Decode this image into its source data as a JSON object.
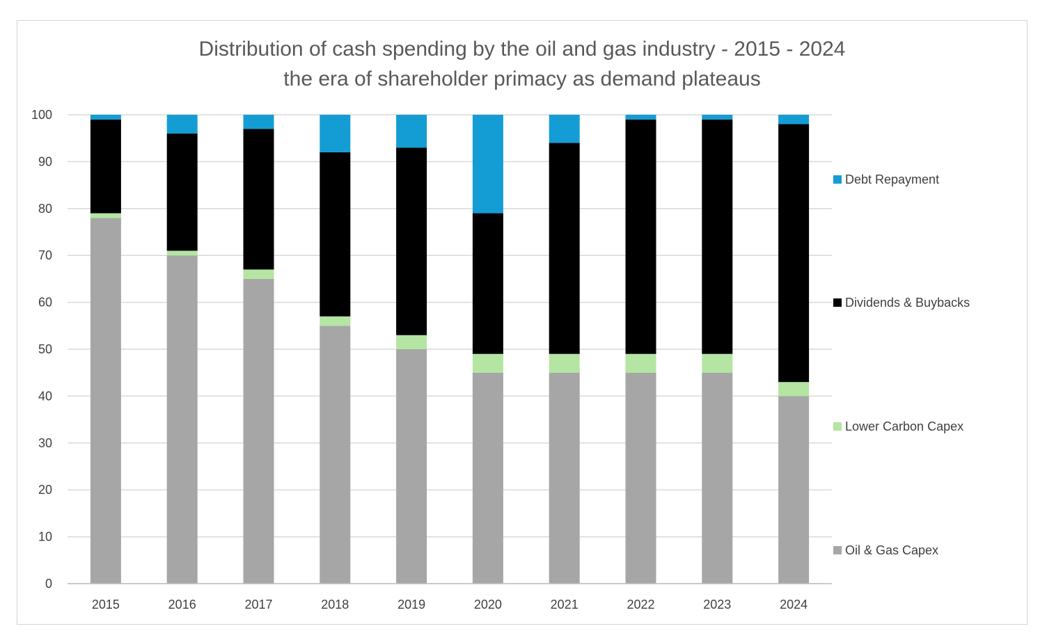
{
  "chart_data": {
    "type": "bar",
    "stacked": true,
    "title": "Distribution of cash spending by the oil and gas industry - 2015 - 2024",
    "subtitle": "the era of shareholder primacy as demand plateaus",
    "xlabel": "",
    "ylabel": "",
    "ylim": [
      0,
      100
    ],
    "yticks": [
      0,
      10,
      20,
      30,
      40,
      50,
      60,
      70,
      80,
      90,
      100
    ],
    "grid": true,
    "legend_position": "right",
    "categories": [
      "2015",
      "2016",
      "2017",
      "2018",
      "2019",
      "2020",
      "2021",
      "2022",
      "2023",
      "2024"
    ],
    "series": [
      {
        "name": "Oil & Gas Capex",
        "color": "#a6a6a6",
        "values": [
          78,
          70,
          65,
          55,
          50,
          45,
          45,
          45,
          45,
          40
        ]
      },
      {
        "name": "Lower Carbon Capex",
        "color": "#b4e5a2",
        "values": [
          1,
          1,
          2,
          2,
          3,
          4,
          4,
          4,
          4,
          3
        ]
      },
      {
        "name": "Dividends & Buybacks",
        "color": "#000000",
        "values": [
          20,
          25,
          30,
          35,
          40,
          30,
          45,
          50,
          50,
          55
        ]
      },
      {
        "name": "Debt Repayment",
        "color": "#149dd4",
        "values": [
          1,
          4,
          3,
          8,
          7,
          21,
          6,
          1,
          1,
          2
        ]
      }
    ],
    "legend_order": [
      "Debt Repayment",
      "Dividends & Buybacks",
      "Lower Carbon Capex",
      "Oil & Gas Capex"
    ]
  }
}
